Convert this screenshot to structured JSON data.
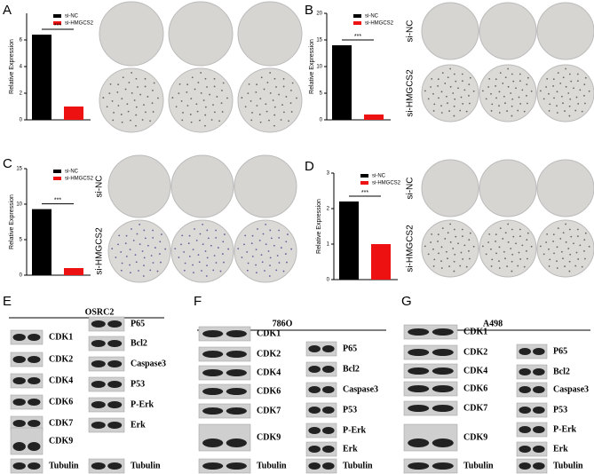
{
  "chart_data": [
    {
      "type": "bar",
      "panel": "A",
      "y_label": "Relative Expression",
      "annotation": "***",
      "categories": [
        null
      ],
      "series": [
        {
          "name": "si-NC",
          "color": "#000000",
          "values": [
            6.4
          ]
        },
        {
          "name": "si-HMGCS2",
          "color": "#ee1111",
          "values": [
            1.0
          ]
        }
      ],
      "ylim": [
        0,
        8
      ],
      "yticks": [
        0,
        2,
        4,
        6
      ],
      "plate_row_labels": []
    },
    {
      "type": "bar",
      "panel": "B",
      "y_label": "Relative Expression",
      "annotation": "***",
      "categories": [
        null
      ],
      "series": [
        {
          "name": "si-NC",
          "color": "#000000",
          "values": [
            14
          ]
        },
        {
          "name": "si-HMGCS2",
          "color": "#ee1111",
          "values": [
            1.0
          ]
        }
      ],
      "ylim": [
        0,
        20
      ],
      "yticks": [
        0,
        5,
        10,
        15,
        20
      ],
      "plate_row_labels": [
        "si-NC",
        "si-HMGCS2"
      ]
    },
    {
      "type": "bar",
      "panel": "C",
      "y_label": "Relative Expression",
      "annotation": "***",
      "categories": [
        null
      ],
      "series": [
        {
          "name": "si-NC",
          "color": "#000000",
          "values": [
            9.3
          ]
        },
        {
          "name": "si-HMGCS2",
          "color": "#ee1111",
          "values": [
            1.0
          ]
        }
      ],
      "ylim": [
        0,
        15
      ],
      "yticks": [
        0,
        5,
        10,
        15
      ],
      "plate_row_labels": [
        "si-NC",
        "si-HMGCS2"
      ]
    },
    {
      "type": "bar",
      "panel": "D",
      "y_label": "Relative Expression",
      "annotation": "***",
      "categories": [
        null
      ],
      "series": [
        {
          "name": "si-NC",
          "color": "#000000",
          "values": [
            2.2
          ]
        },
        {
          "name": "si-HMGCS2",
          "color": "#ee1111",
          "values": [
            1.0
          ]
        }
      ],
      "ylim": [
        0,
        3
      ],
      "yticks": [
        0,
        1,
        2,
        3
      ],
      "plate_row_labels": [
        "si-NC",
        "si-HMGCS2"
      ]
    }
  ],
  "blots": [
    {
      "panel": "E",
      "cell_line": "OSRC2",
      "left": [
        "CDK1",
        "CDK2",
        "CDK4",
        "CDK6",
        "CDK7",
        "CDK9",
        "Tubulin"
      ],
      "right": [
        "P65",
        "Bcl2",
        "Caspase3",
        "P53",
        "P-Erk",
        "Erk",
        "Tubulin"
      ]
    },
    {
      "panel": "F",
      "cell_line": "786O",
      "left": [
        "CDK1",
        "CDK2",
        "CDK4",
        "CDK6",
        "CDK7",
        "CDK9",
        "Tubulin"
      ],
      "right": [
        "P65",
        "Bcl2",
        "Caspase3",
        "P53",
        "P-Erk",
        "Erk",
        "Tubulin"
      ]
    },
    {
      "panel": "G",
      "cell_line": "A498",
      "left": [
        "CDK1",
        "CDK2",
        "CDK4",
        "CDK6",
        "CDK7",
        "CDK9",
        "Tubulin"
      ],
      "right": [
        "P65",
        "Bcl2",
        "Caspase3",
        "P53",
        "P-Erk",
        "Erk",
        "Tubulin"
      ]
    }
  ]
}
